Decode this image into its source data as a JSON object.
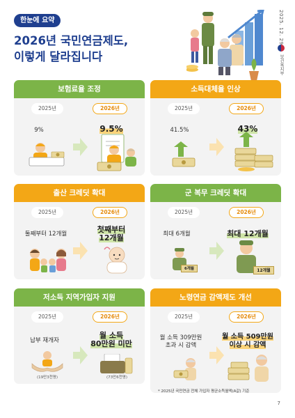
{
  "header": {
    "tag": "한눈에 요약",
    "title_line1": "2026년 국민연금제도,",
    "title_line2": "이렇게 달라집니다",
    "date": "2025. 12. 29.",
    "ministry": "보건복지부"
  },
  "cards": [
    {
      "title": "보험료율 조정",
      "old_year": "2025년",
      "new_year": "2026년",
      "old_value": "9%",
      "new_value": "9.5%"
    },
    {
      "title": "소득대체율 인상",
      "old_year": "2025년",
      "new_year": "2026년",
      "old_value": "41.5%",
      "new_value": "43%"
    },
    {
      "title": "출산 크레딧 확대",
      "old_year": "2025년",
      "new_year": "2026년",
      "old_value": "둘째부터 12개월",
      "new_value_line1": "첫째부터",
      "new_value_line2": "12개월"
    },
    {
      "title": "군 복무 크레딧 확대",
      "old_year": "2025년",
      "new_year": "2026년",
      "old_value": "최대 6개월",
      "new_value": "최대 12개월",
      "old_badge": "6개월",
      "new_badge": "12개월"
    },
    {
      "title": "저소득 지역가입자 지원",
      "old_year": "2025년",
      "new_year": "2026년",
      "old_value": "납부 재개자",
      "new_value_line1": "월 소득",
      "new_value_line2": "80만원 미만",
      "old_note": "(19만3천명)",
      "new_note": "(73만6천명)"
    },
    {
      "title": "노령연금 감액제도 개선",
      "old_year": "2025년",
      "new_year": "2026년",
      "old_value_line1": "월 소득 309만원",
      "old_value_line2": "초과 시 감액",
      "new_value_line1": "월 소득 509만원",
      "new_value_line2": "이상 시 감액"
    }
  ],
  "footnote": "* 2025년 국민연금 전체 가입자 평균소득월액(A값) 기준",
  "page_number": "7",
  "colors": {
    "navy": "#1f3f8f",
    "green": "#7cb448",
    "orange": "#f3a716",
    "card_bg": "#f3f3f3"
  }
}
